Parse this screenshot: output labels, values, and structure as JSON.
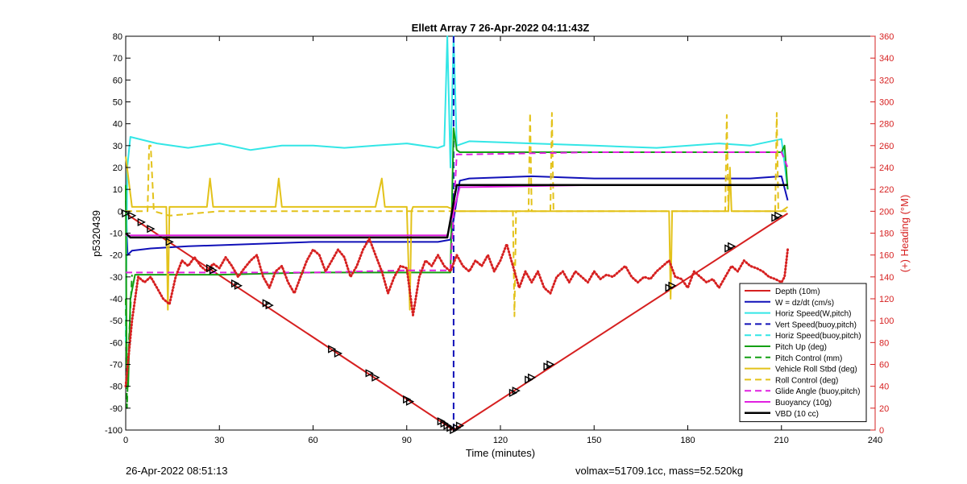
{
  "chart_data": {
    "type": "line",
    "title": "Ellett Array 7 26-Apr-2022 04:11:43Z",
    "xlabel": "Time (minutes)",
    "ylabel": "p5320439",
    "y2label": "(+) Heading (°M)",
    "xlim": [
      0,
      240
    ],
    "ylim": [
      -100,
      80
    ],
    "y2lim": [
      0,
      360
    ],
    "xticks": [
      "0",
      "30",
      "60",
      "90",
      "120",
      "150",
      "180",
      "210",
      "240"
    ],
    "yticks": [
      "80",
      "70",
      "60",
      "50",
      "40",
      "30",
      "20",
      "10",
      "0",
      "-10",
      "-20",
      "-30",
      "-40",
      "-50",
      "-60",
      "-70",
      "-80",
      "-90",
      "-100"
    ],
    "y2ticks": [
      "360",
      "340",
      "320",
      "300",
      "280",
      "260",
      "240",
      "220",
      "200",
      "180",
      "160",
      "140",
      "120",
      "100",
      "80",
      "60",
      "40",
      "20",
      "0"
    ],
    "grid": false,
    "legend_position": "bottom-right",
    "colors": {
      "red": "#d62020",
      "blue": "#1010b8",
      "cyan": "#33e6e6",
      "green": "#14a014",
      "yellow": "#e3c21a",
      "magenta": "#e020e0",
      "black": "#000000",
      "right_axis": "#d62020"
    },
    "series": [
      {
        "name": "Depth (10m)",
        "color": "#d62020",
        "style": "solid",
        "width": 2,
        "x": [
          0,
          105,
          212
        ],
        "y": [
          -1,
          -100,
          -1
        ]
      },
      {
        "name": "W = dz/dt (cm/s)",
        "color": "#1010b8",
        "style": "solid",
        "width": 2,
        "x": [
          0,
          0.6,
          2,
          8,
          20,
          40,
          60,
          80,
          100,
          104,
          107,
          110,
          130,
          150,
          170,
          190,
          200,
          210,
          212
        ],
        "y": [
          5,
          -20,
          -18,
          -17,
          -16,
          -15,
          -14,
          -14,
          -14,
          -13,
          14,
          15,
          16,
          15,
          15,
          15,
          15,
          16,
          5
        ]
      },
      {
        "name": "Horiz Speed(W,pitch)",
        "color": "#33e6e6",
        "style": "solid",
        "width": 2,
        "x": [
          0,
          0.5,
          1.5,
          10,
          20,
          30,
          40,
          50,
          60,
          70,
          80,
          90,
          100,
          102,
          103,
          104,
          105,
          106,
          110,
          130,
          150,
          170,
          190,
          200,
          210,
          212
        ],
        "y": [
          -60,
          20,
          34,
          31,
          29,
          31,
          28,
          30,
          30,
          29,
          30,
          31,
          29,
          30,
          80,
          20,
          80,
          30,
          32,
          31,
          30,
          29,
          31,
          30,
          33,
          10
        ]
      },
      {
        "name": "Vert Speed(buoy,pitch)",
        "color": "#1010b8",
        "style": "dashed",
        "width": 2,
        "x": [
          105,
          105
        ],
        "y": [
          -100,
          80
        ]
      },
      {
        "name": "Horiz Speed(buoy,pitch)",
        "color": "#33e6e6",
        "style": "dashed",
        "width": 2,
        "x": [],
        "y": []
      },
      {
        "name": "Pitch Up (deg)",
        "color": "#14a014",
        "style": "solid",
        "width": 2,
        "x": [
          0,
          0.3,
          0.8,
          1.5,
          3,
          30,
          60,
          90,
          104,
          105,
          106,
          107,
          150,
          200,
          210,
          211,
          212
        ],
        "y": [
          12,
          -70,
          -80,
          -40,
          -29,
          -29,
          -28,
          -28,
          -28,
          38,
          28,
          27,
          27,
          27,
          27,
          30,
          10
        ]
      },
      {
        "name": "Pitch Control (mm)",
        "color": "#14a014",
        "style": "dashed",
        "width": 2,
        "x": [
          0,
          0.4,
          1,
          2
        ],
        "y": [
          -40,
          -90,
          -60,
          -29
        ]
      },
      {
        "name": "Vehicle Roll Stbd (deg)",
        "color": "#e3c21a",
        "style": "solid",
        "width": 2,
        "x": [
          0,
          2,
          13,
          13.5,
          14,
          20,
          26,
          27,
          28,
          29,
          30,
          40,
          48,
          49,
          50,
          60,
          70,
          80,
          82,
          83,
          84,
          90,
          91,
          91.5,
          92,
          100,
          103,
          106,
          110,
          120,
          130,
          140,
          150,
          160,
          174,
          174.5,
          175,
          180,
          193,
          193.5,
          194,
          200,
          210,
          212
        ],
        "y": [
          25,
          2,
          2,
          -45,
          2,
          2,
          2,
          15,
          2,
          2,
          2,
          2,
          2,
          15,
          2,
          2,
          2,
          2,
          15,
          2,
          2,
          2,
          -45,
          0,
          2,
          2,
          2,
          0,
          0,
          0,
          0,
          0,
          0,
          0,
          0,
          -40,
          0,
          0,
          0,
          20,
          0,
          0,
          0,
          2
        ]
      },
      {
        "name": "Roll Control (deg)",
        "color": "#e3c21a",
        "style": "dashed",
        "width": 2,
        "x": [
          0,
          5,
          7,
          7.5,
          8,
          9,
          14,
          30,
          40,
          60,
          80,
          90,
          100,
          106,
          124,
          124.5,
          125,
          129,
          129.5,
          130,
          136,
          136.5,
          137,
          150,
          170,
          190,
          192,
          192.5,
          193,
          200,
          208,
          208.5,
          209,
          212
        ],
        "y": [
          0,
          0,
          0,
          30,
          30,
          0,
          -2,
          0,
          0,
          0,
          0,
          0,
          0,
          0,
          0,
          -48,
          0,
          0,
          45,
          0,
          0,
          45,
          0,
          0,
          0,
          0,
          0,
          44,
          0,
          0,
          0,
          45,
          0,
          0
        ]
      },
      {
        "name": "Glide Angle (buoy,pitch)",
        "color": "#e020e0",
        "style": "dashed",
        "width": 2,
        "x": [
          0,
          2,
          30,
          60,
          90,
          104,
          106,
          110,
          150,
          200,
          210,
          212
        ],
        "y": [
          -28,
          -28,
          -28,
          -28,
          -27,
          -27,
          26,
          26,
          27,
          27,
          27,
          20
        ]
      },
      {
        "name": "Buoyancy (10g)",
        "color": "#e020e0",
        "style": "solid",
        "width": 2,
        "x": [
          0,
          2,
          30,
          60,
          90,
          103,
          107,
          110,
          150,
          200,
          210,
          212
        ],
        "y": [
          -11,
          -11,
          -11,
          -11,
          -11,
          -11,
          11,
          11,
          12,
          12,
          12,
          12
        ]
      },
      {
        "name": "VBD (10 cc)",
        "color": "#000000",
        "style": "solid",
        "width": 2.5,
        "x": [
          0,
          1.5,
          30,
          60,
          90,
          103,
          106,
          130,
          160,
          200,
          212
        ],
        "y": [
          -10,
          -12,
          -12,
          -12,
          -12,
          -12,
          12,
          12,
          12,
          12,
          12
        ]
      },
      {
        "name": "Heading",
        "axis": "right",
        "color": "#d62020",
        "style": "dotted",
        "width": 3,
        "x": [
          0,
          1,
          2,
          4,
          6,
          8,
          10,
          12,
          14,
          16,
          18,
          20,
          22,
          24,
          26,
          28,
          30,
          32,
          34,
          36,
          38,
          40,
          42,
          44,
          46,
          48,
          50,
          52,
          54,
          56,
          58,
          60,
          62,
          64,
          66,
          68,
          70,
          72,
          74,
          76,
          78,
          80,
          82,
          84,
          86,
          88,
          90,
          92,
          94,
          96,
          98,
          100,
          102,
          104,
          106,
          108,
          110,
          112,
          114,
          116,
          118,
          120,
          122,
          124,
          126,
          128,
          130,
          132,
          134,
          136,
          138,
          140,
          142,
          144,
          146,
          148,
          150,
          152,
          154,
          156,
          158,
          160,
          162,
          164,
          166,
          168,
          170,
          172,
          174,
          176,
          178,
          180,
          182,
          184,
          186,
          188,
          190,
          192,
          194,
          196,
          198,
          200,
          202,
          204,
          206,
          208,
          210,
          211,
          212
        ],
        "y": [
          40,
          70,
          100,
          140,
          135,
          140,
          130,
          120,
          115,
          140,
          155,
          150,
          158,
          150,
          145,
          152,
          148,
          158,
          150,
          140,
          148,
          155,
          160,
          140,
          130,
          145,
          150,
          135,
          125,
          140,
          155,
          165,
          160,
          145,
          155,
          165,
          158,
          140,
          150,
          165,
          175,
          160,
          145,
          125,
          140,
          150,
          148,
          105,
          140,
          155,
          150,
          160,
          150,
          145,
          160,
          150,
          145,
          155,
          150,
          160,
          145,
          155,
          170,
          150,
          130,
          145,
          135,
          145,
          130,
          125,
          140,
          145,
          135,
          145,
          140,
          135,
          145,
          138,
          142,
          140,
          145,
          150,
          140,
          135,
          140,
          138,
          145,
          150,
          155,
          140,
          138,
          130,
          145,
          140,
          135,
          138,
          130,
          140,
          150,
          145,
          155,
          150,
          148,
          145,
          140,
          138,
          135,
          140,
          165
        ]
      }
    ],
    "depth_markers": {
      "x": [
        0,
        2,
        5,
        8,
        14,
        27,
        28,
        35,
        36,
        45,
        46,
        66,
        68,
        78,
        80,
        90,
        91,
        101,
        102,
        103,
        104,
        105,
        106,
        107,
        124,
        125,
        129,
        130,
        135,
        136,
        174,
        175,
        193,
        194,
        208,
        209
      ],
      "y": [
        -1,
        -2,
        -5,
        -8,
        -14,
        -26,
        -27,
        -33,
        -34,
        -42,
        -43,
        -63,
        -65,
        -74,
        -76,
        -86,
        -87,
        -96,
        -97,
        -98,
        -99,
        -100,
        -99,
        -98,
        -83,
        -82,
        -77,
        -76,
        -71,
        -70,
        -35,
        -34,
        -17,
        -16,
        -3,
        -2
      ]
    }
  },
  "footer": {
    "left": "26-Apr-2022 08:51:13",
    "right": "volmax=51709.1cc, mass=52.520kg"
  }
}
